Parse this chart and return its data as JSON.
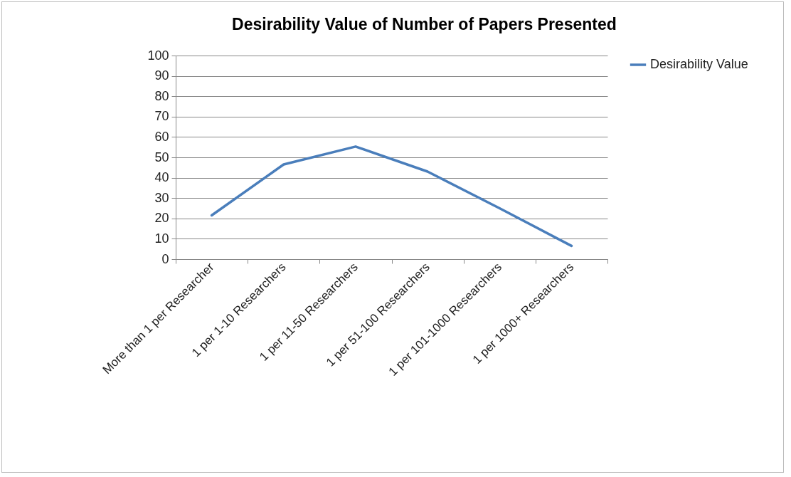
{
  "chart_data": {
    "type": "line",
    "title": "Desirability Value of Number of Papers Presented",
    "categories": [
      "More than 1 per Researcher",
      "1 per 1-10 Researchers",
      "1  per 11-50 Researchers",
      "1  per 51-100 Researchers",
      "1  per 101-1000 Researchers",
      "1  per 1000+ Researchers"
    ],
    "series": [
      {
        "name": "Desirability Value",
        "color": "#4a7ebb",
        "values": [
          21.5,
          46.5,
          55.3,
          43,
          25,
          6.5
        ]
      }
    ],
    "ylim": [
      0,
      100
    ],
    "yticks": [
      0,
      10,
      20,
      30,
      40,
      50,
      60,
      70,
      80,
      90,
      100
    ],
    "grid": "y",
    "legend": "right"
  }
}
